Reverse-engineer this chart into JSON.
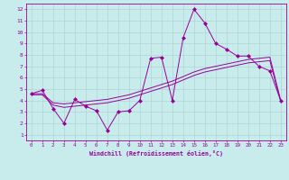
{
  "xlabel": "Windchill (Refroidissement éolien,°C)",
  "background_color": "#c8ecec",
  "line_color": "#990099",
  "grid_color": "#b0d4d4",
  "x_ticks": [
    0,
    1,
    2,
    3,
    4,
    5,
    6,
    7,
    8,
    9,
    10,
    11,
    12,
    13,
    14,
    15,
    16,
    17,
    18,
    19,
    20,
    21,
    22,
    23
  ],
  "y_ticks": [
    1,
    2,
    3,
    4,
    5,
    6,
    7,
    8,
    9,
    10,
    11,
    12
  ],
  "xlim": [
    -0.5,
    23.5
  ],
  "ylim": [
    0.5,
    12.5
  ],
  "line1_x": [
    0,
    1,
    2,
    3,
    4,
    5,
    6,
    7,
    8,
    9,
    10,
    11,
    12,
    13,
    14,
    15,
    16,
    17,
    18,
    19,
    20,
    21,
    22,
    23
  ],
  "line1_y": [
    4.6,
    4.9,
    3.3,
    2.0,
    4.1,
    3.5,
    3.1,
    1.4,
    3.0,
    3.1,
    4.0,
    7.7,
    7.8,
    4.0,
    9.5,
    12.0,
    10.8,
    9.0,
    8.5,
    7.9,
    7.9,
    7.0,
    6.6,
    4.0
  ],
  "line2_x": [
    0,
    1,
    2,
    3,
    4,
    5,
    6,
    7,
    8,
    9,
    10,
    11,
    12,
    13,
    14,
    15,
    16,
    17,
    18,
    19,
    20,
    21,
    22,
    23
  ],
  "line2_y": [
    4.6,
    4.6,
    3.8,
    3.7,
    3.8,
    3.9,
    4.0,
    4.1,
    4.3,
    4.5,
    4.8,
    5.1,
    5.4,
    5.7,
    6.1,
    6.5,
    6.8,
    7.0,
    7.2,
    7.4,
    7.6,
    7.7,
    7.8,
    4.0
  ],
  "line3_x": [
    0,
    1,
    2,
    3,
    4,
    5,
    6,
    7,
    8,
    9,
    10,
    11,
    12,
    13,
    14,
    15,
    16,
    17,
    18,
    19,
    20,
    21,
    22,
    23
  ],
  "line3_y": [
    4.5,
    4.5,
    3.6,
    3.4,
    3.5,
    3.6,
    3.7,
    3.8,
    4.0,
    4.2,
    4.5,
    4.8,
    5.1,
    5.4,
    5.8,
    6.2,
    6.5,
    6.7,
    6.9,
    7.1,
    7.3,
    7.4,
    7.5,
    3.9
  ]
}
